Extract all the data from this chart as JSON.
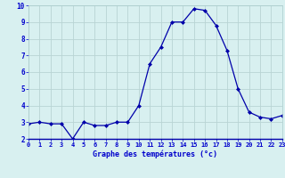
{
  "hours": [
    0,
    1,
    2,
    3,
    4,
    5,
    6,
    7,
    8,
    9,
    10,
    11,
    12,
    13,
    14,
    15,
    16,
    17,
    18,
    19,
    20,
    21,
    22,
    23
  ],
  "temps": [
    2.9,
    3.0,
    2.9,
    2.9,
    2.0,
    3.0,
    2.8,
    2.8,
    3.0,
    3.0,
    4.0,
    6.5,
    7.5,
    9.0,
    9.0,
    9.8,
    9.7,
    8.8,
    7.3,
    5.0,
    3.6,
    3.3,
    3.2,
    3.4
  ],
  "line_color": "#0000aa",
  "marker": "D",
  "marker_size": 2.0,
  "bg_color": "#d8f0f0",
  "grid_color": "#b8d4d4",
  "xlabel": "Graphe des températures (°c)",
  "xlabel_color": "#0000cc",
  "tick_color": "#0000cc",
  "ylim": [
    2,
    10
  ],
  "xlim": [
    0,
    23
  ],
  "yticks": [
    2,
    3,
    4,
    5,
    6,
    7,
    8,
    9,
    10
  ],
  "xticks": [
    0,
    1,
    2,
    3,
    4,
    5,
    6,
    7,
    8,
    9,
    10,
    11,
    12,
    13,
    14,
    15,
    16,
    17,
    18,
    19,
    20,
    21,
    22,
    23
  ]
}
